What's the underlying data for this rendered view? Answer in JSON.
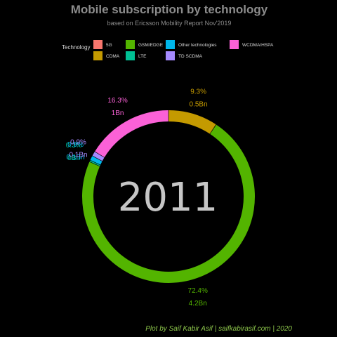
{
  "chart_data": {
    "type": "pie",
    "title": "Mobile subscription by technology",
    "subtitle": "based on Ericsson Mobility Report Nov'2019",
    "center_label": "2011",
    "legend": {
      "title": "Technology",
      "placement": "top",
      "entries": [
        {
          "name": "5G",
          "color": "#f8766d"
        },
        {
          "name": "CDMA",
          "color": "#c49a00"
        },
        {
          "name": "GSM/EDGE",
          "color": "#53b400"
        },
        {
          "name": "LTE",
          "color": "#00c094"
        },
        {
          "name": "Other technologies",
          "color": "#00b6eb"
        },
        {
          "name": "TD SCDMA",
          "color": "#a58aff"
        },
        {
          "name": "WCDMA/HSPA",
          "color": "#fb61d7"
        }
      ]
    },
    "slices": [
      {
        "name": "CDMA",
        "percent": 9.3,
        "pct_label": "9.3%",
        "value_label": "0.5Bn",
        "color": "#c49a00"
      },
      {
        "name": "GSM/EDGE",
        "percent": 72.4,
        "pct_label": "72.4%",
        "value_label": "4.2Bn",
        "color": "#53b400"
      },
      {
        "name": "LTE",
        "percent": 0.3,
        "pct_label": "0.3%",
        "value_label": "0Bn",
        "color": "#00c094"
      },
      {
        "name": "Other technologies",
        "percent": 0.9,
        "pct_label": "0.9%",
        "value_label": "0.1Bn",
        "color": "#00b6eb"
      },
      {
        "name": "TD SCDMA",
        "percent": 0.9,
        "pct_label": "0.9%",
        "value_label": "0.1Bn",
        "color": "#a58aff"
      },
      {
        "name": "WCDMA/HSPA",
        "percent": 16.3,
        "pct_label": "16.3%",
        "value_label": "1Bn",
        "color": "#fb61d7"
      }
    ]
  },
  "caption": "Plot by Saif Kabir Asif | saifkabirasif.com | 2020"
}
